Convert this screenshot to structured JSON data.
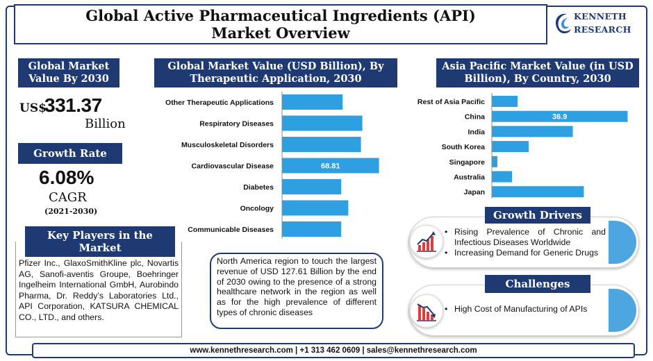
{
  "header": {
    "title": "Global Active Pharmaceutical Ingredients (API) Market Overview",
    "logo_line1": "KENNETH",
    "logo_line2": "RESEARCH"
  },
  "market_value": {
    "heading": "Global Market Value By 2030",
    "currency": "US$",
    "value": "331.37",
    "unit": "Billion"
  },
  "growth": {
    "heading": "Growth Rate",
    "value": "6.08%",
    "label": "CAGR",
    "period": "(2021-2030)"
  },
  "key_players": {
    "heading": "Key Players in the Market",
    "text": "Pfizer Inc., GlaxoSmithKline plc, Novartis AG, Sanofi-aventis Groupe, Boehringer Ingelheim International GmbH, Aurobindo Pharma, Dr. Reddy’s Laboratories Ltd., API Corporation, KATSURA CHEMICAL CO., LTD., and others."
  },
  "north_america": {
    "text": "North America region to touch the largest revenue of USD 127.61 Billion by the end of 2030 owing to the presence of a strong healthcare network in the region as well as for the high prevalence of different types of chronic diseases"
  },
  "growth_drivers": {
    "heading": "Growth Drivers",
    "items": [
      "Rising Prevalence of Chronic and Infectious Diseases Worldwide",
      "Increasing Demand for Generic Drugs"
    ]
  },
  "challenges": {
    "heading": "Challenges",
    "items": [
      "High Cost of Manufacturing of APIs"
    ]
  },
  "footer": {
    "text": "www.kennethresearch.com | +1 313 462 0609 | sales@kennethresearch.com"
  },
  "colors": {
    "navy": "#1f3a73",
    "bar": "#2e9fe0",
    "accent": "#4da6e0"
  },
  "chart_data": [
    {
      "type": "bar",
      "orientation": "horizontal",
      "title": "Global Market Value (USD Billion), By Therapeutic Application, 2030",
      "categories": [
        "Other Therapeutic Applications",
        "Respiratory Diseases",
        "Musculoskeletal Disorders",
        "Cardiovascular Disease",
        "Diabetes",
        "Oncology",
        "Communicable Diseases"
      ],
      "values": [
        43,
        57,
        56,
        68.81,
        42,
        47,
        42
      ],
      "data_labels": [
        "",
        "",
        "",
        "68.81",
        "",
        "",
        ""
      ],
      "xlim": [
        0,
        70
      ],
      "grid": false,
      "legend": "none"
    },
    {
      "type": "bar",
      "orientation": "horizontal",
      "title": "Asia Pacific Market Value (in USD Billion), By Country, 2030",
      "categories": [
        "Rest of Asia Pacific",
        "China",
        "India",
        "South Korea",
        "Singapore",
        "Australia",
        "Japan"
      ],
      "values": [
        7,
        36.9,
        22,
        10,
        1.5,
        5.5,
        25
      ],
      "data_labels": [
        "",
        "36.9",
        "",
        "",
        "",
        "",
        ""
      ],
      "xlim": [
        0,
        37
      ],
      "grid": false,
      "legend": "none"
    }
  ]
}
